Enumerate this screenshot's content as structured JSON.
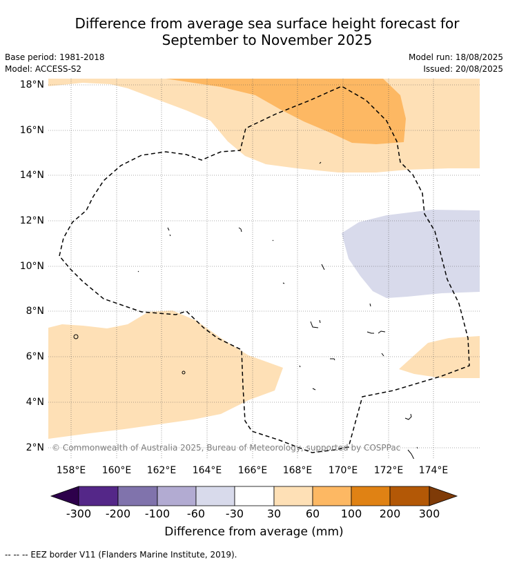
{
  "title_line1": "Difference from average sea surface height forecast for",
  "title_line2": "September to November 2025",
  "meta_left": [
    "Base period: 1981-2018",
    "Model: ACCESS-S2"
  ],
  "meta_right": [
    "Model run: 18/08/2025",
    "Issued: 20/08/2025"
  ],
  "copyright": "© Commonwealth of Australia 2025, Bureau of Meteorology, supported by COSPPac",
  "lat_labels": [
    "18°N",
    "16°N",
    "14°N",
    "12°N",
    "10°N",
    "8°N",
    "6°N",
    "4°N",
    "2°N"
  ],
  "lon_labels": [
    "158°E",
    "160°E",
    "162°E",
    "164°E",
    "166°E",
    "168°E",
    "170°E",
    "172°E",
    "174°E"
  ],
  "colorbar": {
    "ticks": [
      "-300",
      "-200",
      "-100",
      "-60",
      "-30",
      "30",
      "60",
      "100",
      "200",
      "300"
    ],
    "label": "Difference from average (mm)",
    "colors": [
      "#2d004b",
      "#542788",
      "#8073ac",
      "#b2abd2",
      "#d8daeb",
      "#ffffff",
      "#fee0b6",
      "#fdb863",
      "#e08214",
      "#b35806",
      "#7f3b08"
    ]
  },
  "footer": "--  --  -- EEZ border V11 (Flanders Marine Institute, 2019)."
}
